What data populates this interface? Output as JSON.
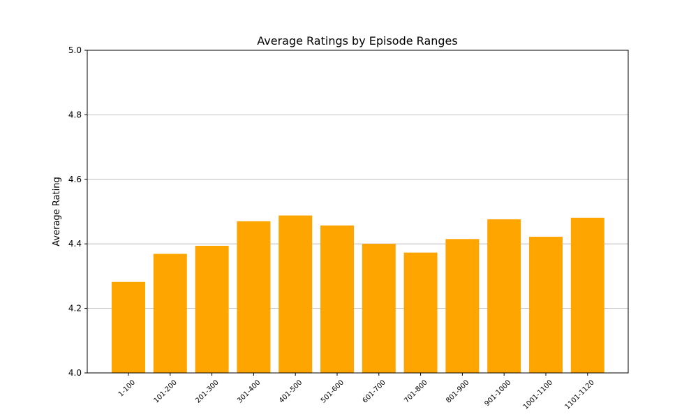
{
  "chart_data": {
    "type": "bar",
    "title": "Average Ratings by Episode Ranges",
    "ylabel": "Average Rating",
    "categories": [
      "1-100",
      "101-200",
      "201-300",
      "301-400",
      "401-500",
      "501-600",
      "601-700",
      "701-800",
      "801-900",
      "901-1000",
      "1001-1100",
      "1101-1120"
    ],
    "values": [
      4.282,
      4.369,
      4.394,
      4.47,
      4.488,
      4.457,
      4.4,
      4.373,
      4.415,
      4.476,
      4.422,
      4.481
    ],
    "ylim": [
      4.0,
      5.0
    ],
    "yticks": [
      "4.0",
      "4.2",
      "4.4",
      "4.6",
      "4.8",
      "5.0"
    ],
    "grid": "y",
    "bar_color": "#FFA500"
  }
}
